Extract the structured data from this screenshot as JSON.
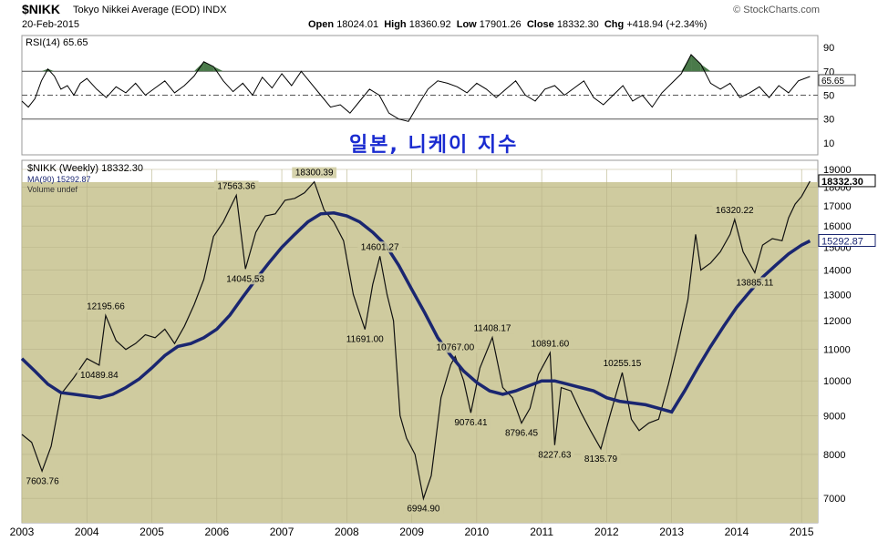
{
  "header": {
    "symbol": "$NIKK",
    "description": "Tokyo Nikkei Average (EOD)",
    "exchange": "INDX",
    "source": "© StockCharts.com",
    "date": "20-Feb-2015",
    "open_label": "Open",
    "open": "18024.01",
    "high_label": "High",
    "high": "18360.92",
    "low_label": "Low",
    "low": "17901.26",
    "close_label": "Close",
    "close": "18332.30",
    "chg_label": "Chg",
    "chg": "+418.94 (+2.34%)"
  },
  "annotation_text": "일본, 니케이 지수",
  "chart_data": [
    {
      "type": "line",
      "panel": "RSI(14)",
      "legend": "RSI(14) 65.65",
      "current_value": "65.65",
      "ylim": [
        0,
        100
      ],
      "y_ticks": [
        10,
        30,
        50,
        70,
        90
      ],
      "reference_lines": [
        30,
        50,
        70
      ],
      "overbought_fill_color": "#4a7a4a",
      "x": [
        2003.0,
        2003.1,
        2003.2,
        2003.3,
        2003.4,
        2003.5,
        2003.6,
        2003.7,
        2003.8,
        2003.9,
        2004.0,
        2004.15,
        2004.3,
        2004.45,
        2004.6,
        2004.75,
        2004.9,
        2005.05,
        2005.2,
        2005.35,
        2005.5,
        2005.65,
        2005.8,
        2005.95,
        2006.1,
        2006.25,
        2006.4,
        2006.55,
        2006.7,
        2006.85,
        2007.0,
        2007.15,
        2007.3,
        2007.45,
        2007.6,
        2007.75,
        2007.9,
        2008.05,
        2008.2,
        2008.35,
        2008.5,
        2008.65,
        2008.8,
        2008.95,
        2009.1,
        2009.25,
        2009.4,
        2009.55,
        2009.7,
        2009.85,
        2010.0,
        2010.15,
        2010.3,
        2010.45,
        2010.6,
        2010.75,
        2010.9,
        2011.05,
        2011.2,
        2011.35,
        2011.5,
        2011.65,
        2011.8,
        2011.95,
        2012.1,
        2012.25,
        2012.4,
        2012.55,
        2012.7,
        2012.85,
        2013.0,
        2013.15,
        2013.3,
        2013.45,
        2013.6,
        2013.75,
        2013.9,
        2014.05,
        2014.2,
        2014.35,
        2014.5,
        2014.65,
        2014.8,
        2014.95,
        2015.13
      ],
      "values": [
        45,
        40,
        47,
        62,
        72,
        66,
        55,
        58,
        50,
        60,
        64,
        55,
        48,
        57,
        52,
        60,
        50,
        56,
        62,
        52,
        58,
        66,
        78,
        74,
        62,
        53,
        60,
        50,
        65,
        56,
        68,
        58,
        70,
        60,
        50,
        40,
        42,
        35,
        45,
        55,
        50,
        35,
        30,
        28,
        42,
        55,
        62,
        60,
        57,
        52,
        60,
        55,
        48,
        55,
        62,
        50,
        45,
        55,
        58,
        50,
        56,
        62,
        48,
        42,
        50,
        58,
        45,
        50,
        40,
        52,
        60,
        68,
        84,
        76,
        60,
        55,
        60,
        48,
        52,
        57,
        48,
        58,
        52,
        62,
        65.65
      ]
    },
    {
      "type": "line",
      "panel": "price",
      "legend": "$NIKK (Weekly) 18332.30",
      "ma_legend": "MA(90) 15292.87",
      "volume_legend": "Volume undef",
      "scale": "log",
      "ylim": [
        6500,
        19000
      ],
      "y_ticks": [
        7000,
        8000,
        9000,
        10000,
        11000,
        12000,
        13000,
        14000,
        15000,
        16000,
        17000,
        18000,
        19000
      ],
      "x_ticks": [
        "2003",
        "2004",
        "2005",
        "2006",
        "2007",
        "2008",
        "2009",
        "2010",
        "2011",
        "2012",
        "2013",
        "2014",
        "2015"
      ],
      "x_range": [
        2003.0,
        2015.25
      ],
      "last_price_label": "18332.30",
      "last_ma_label": "15292.87",
      "annotations": [
        {
          "x": 2003.31,
          "y": 7603.76,
          "text": "7603.76"
        },
        {
          "x": 2004.19,
          "y": 10489.84,
          "text": "10489.84"
        },
        {
          "x": 2004.29,
          "y": 12195.66,
          "text": "12195.66"
        },
        {
          "x": 2006.3,
          "y": 17563.36,
          "text": "17563.36"
        },
        {
          "x": 2006.44,
          "y": 14045.53,
          "text": "14045.53"
        },
        {
          "x": 2007.5,
          "y": 18300.39,
          "text": "18300.39"
        },
        {
          "x": 2008.28,
          "y": 11691.0,
          "text": "11691.00"
        },
        {
          "x": 2008.51,
          "y": 14601.27,
          "text": "14601.27"
        },
        {
          "x": 2009.18,
          "y": 6994.9,
          "text": "6994.90"
        },
        {
          "x": 2009.67,
          "y": 10767.0,
          "text": "10767.00"
        },
        {
          "x": 2010.24,
          "y": 11408.17,
          "text": "11408.17"
        },
        {
          "x": 2009.91,
          "y": 9076.41,
          "text": "9076.41"
        },
        {
          "x": 2010.69,
          "y": 8796.45,
          "text": "8796.45"
        },
        {
          "x": 2011.13,
          "y": 10891.6,
          "text": "10891.60"
        },
        {
          "x": 2011.2,
          "y": 8227.63,
          "text": "8227.63"
        },
        {
          "x": 2011.91,
          "y": 8135.79,
          "text": "8135.79"
        },
        {
          "x": 2012.24,
          "y": 10255.15,
          "text": "10255.15"
        },
        {
          "x": 2013.97,
          "y": 16320.22,
          "text": "16320.22"
        },
        {
          "x": 2014.28,
          "y": 13885.11,
          "text": "13885.11"
        }
      ],
      "series": [
        {
          "name": "$NIKK (Weekly)",
          "color": "#000000",
          "x": [
            2003.0,
            2003.15,
            2003.31,
            2003.45,
            2003.6,
            2003.8,
            2004.0,
            2004.19,
            2004.29,
            2004.45,
            2004.6,
            2004.75,
            2004.9,
            2005.05,
            2005.2,
            2005.35,
            2005.5,
            2005.65,
            2005.8,
            2005.95,
            2006.1,
            2006.3,
            2006.44,
            2006.6,
            2006.75,
            2006.9,
            2007.05,
            2007.2,
            2007.35,
            2007.5,
            2007.65,
            2007.8,
            2007.95,
            2008.1,
            2008.28,
            2008.4,
            2008.51,
            2008.62,
            2008.72,
            2008.82,
            2008.92,
            2009.05,
            2009.18,
            2009.3,
            2009.45,
            2009.6,
            2009.67,
            2009.8,
            2009.91,
            2010.05,
            2010.24,
            2010.4,
            2010.55,
            2010.69,
            2010.82,
            2010.95,
            2011.13,
            2011.2,
            2011.3,
            2011.45,
            2011.6,
            2011.75,
            2011.91,
            2012.05,
            2012.24,
            2012.38,
            2012.5,
            2012.65,
            2012.8,
            2012.95,
            2013.1,
            2013.25,
            2013.37,
            2013.45,
            2013.6,
            2013.75,
            2013.9,
            2013.97,
            2014.1,
            2014.28,
            2014.4,
            2014.55,
            2014.7,
            2014.8,
            2014.9,
            2015.0,
            2015.13
          ],
          "values": [
            8500,
            8300,
            7604,
            8200,
            9600,
            10100,
            10700,
            10490,
            12196,
            11300,
            11000,
            11200,
            11500,
            11400,
            11700,
            11200,
            11800,
            12600,
            13600,
            15500,
            16200,
            17563,
            14046,
            15700,
            16500,
            16600,
            17300,
            17400,
            17700,
            18300,
            16800,
            16200,
            15300,
            13000,
            11691,
            13400,
            14601,
            13000,
            12000,
            9000,
            8400,
            8000,
            6995,
            7500,
            9500,
            10500,
            10767,
            10000,
            9076,
            10400,
            11408,
            9800,
            9500,
            8796,
            9200,
            10200,
            10892,
            8228,
            9800,
            9700,
            9100,
            8600,
            8136,
            9000,
            10255,
            8900,
            8600,
            8800,
            8900,
            9900,
            11200,
            12800,
            15600,
            14000,
            14300,
            14800,
            15600,
            16320,
            14800,
            13885,
            15100,
            15400,
            15300,
            16400,
            17100,
            17500,
            18332
          ]
        },
        {
          "name": "MA(90)",
          "color": "#1a2670",
          "x": [
            2003.0,
            2003.2,
            2003.4,
            2003.6,
            2003.8,
            2004.0,
            2004.2,
            2004.4,
            2004.6,
            2004.8,
            2005.0,
            2005.2,
            2005.4,
            2005.6,
            2005.8,
            2006.0,
            2006.2,
            2006.4,
            2006.6,
            2006.8,
            2007.0,
            2007.2,
            2007.4,
            2007.6,
            2007.8,
            2008.0,
            2008.2,
            2008.4,
            2008.6,
            2008.8,
            2009.0,
            2009.2,
            2009.4,
            2009.6,
            2009.8,
            2010.0,
            2010.2,
            2010.4,
            2010.6,
            2010.8,
            2011.0,
            2011.2,
            2011.4,
            2011.6,
            2011.8,
            2012.0,
            2012.2,
            2012.4,
            2012.6,
            2012.8,
            2013.0,
            2013.2,
            2013.4,
            2013.6,
            2013.8,
            2014.0,
            2014.2,
            2014.4,
            2014.6,
            2014.8,
            2015.0,
            2015.13
          ],
          "values": [
            10700,
            10300,
            9900,
            9650,
            9600,
            9550,
            9500,
            9600,
            9800,
            10050,
            10400,
            10800,
            11100,
            11200,
            11400,
            11700,
            12200,
            12900,
            13600,
            14300,
            15000,
            15600,
            16200,
            16600,
            16650,
            16500,
            16200,
            15700,
            15100,
            14200,
            13200,
            12300,
            11400,
            10800,
            10300,
            9950,
            9700,
            9600,
            9700,
            9850,
            10000,
            10000,
            9900,
            9800,
            9700,
            9500,
            9400,
            9350,
            9300,
            9200,
            9100,
            9700,
            10400,
            11100,
            11800,
            12500,
            13100,
            13700,
            14200,
            14700,
            15100,
            15293
          ]
        }
      ]
    }
  ]
}
